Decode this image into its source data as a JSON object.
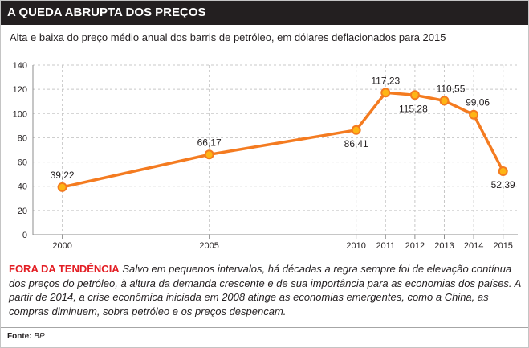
{
  "chart_data": {
    "type": "line",
    "title": "A QUEDA ABRUPTA DOS PREÇOS",
    "subtitle": "Alta e baixa do preço médio anual dos barris de petróleo, em dólares deflacionados para 2015",
    "x": [
      2000,
      2005,
      2010,
      2011,
      2012,
      2013,
      2014,
      2015
    ],
    "series": [
      {
        "values": [
          39.22,
          66.17,
          86.41,
          117.23,
          115.28,
          110.55,
          99.06,
          52.39
        ],
        "labels": [
          "39,22",
          "66,17",
          "86,41",
          "117,23",
          "115,28",
          "110,55",
          "99,06",
          "52,39"
        ]
      }
    ],
    "xlim": [
      1999,
      2015.5
    ],
    "ylim": [
      0,
      140
    ],
    "yticks": [
      0,
      20,
      40,
      60,
      80,
      100,
      120,
      140
    ],
    "grid": true
  },
  "note": {
    "heading": "FORA DA TENDÊNCIA",
    "body": "Salvo em pequenos intervalos, há décadas a regra sempre foi de elevação contínua dos preços do petróleo, à altura da demanda crescente e de sua importância para as economias dos países. A partir de 2014, a crise econômica iniciada em 2008 atinge as economias emergentes, como a China, as compras diminuem, sobra petróleo e os preços despencam."
  },
  "source": {
    "label": "Fonte:",
    "value": "BP"
  },
  "colors": {
    "header_bg": "#231f20",
    "header_text": "#ffffff",
    "note_heading": "#e31e24",
    "line": "#f47b20",
    "marker_fill": "#fdb515"
  }
}
